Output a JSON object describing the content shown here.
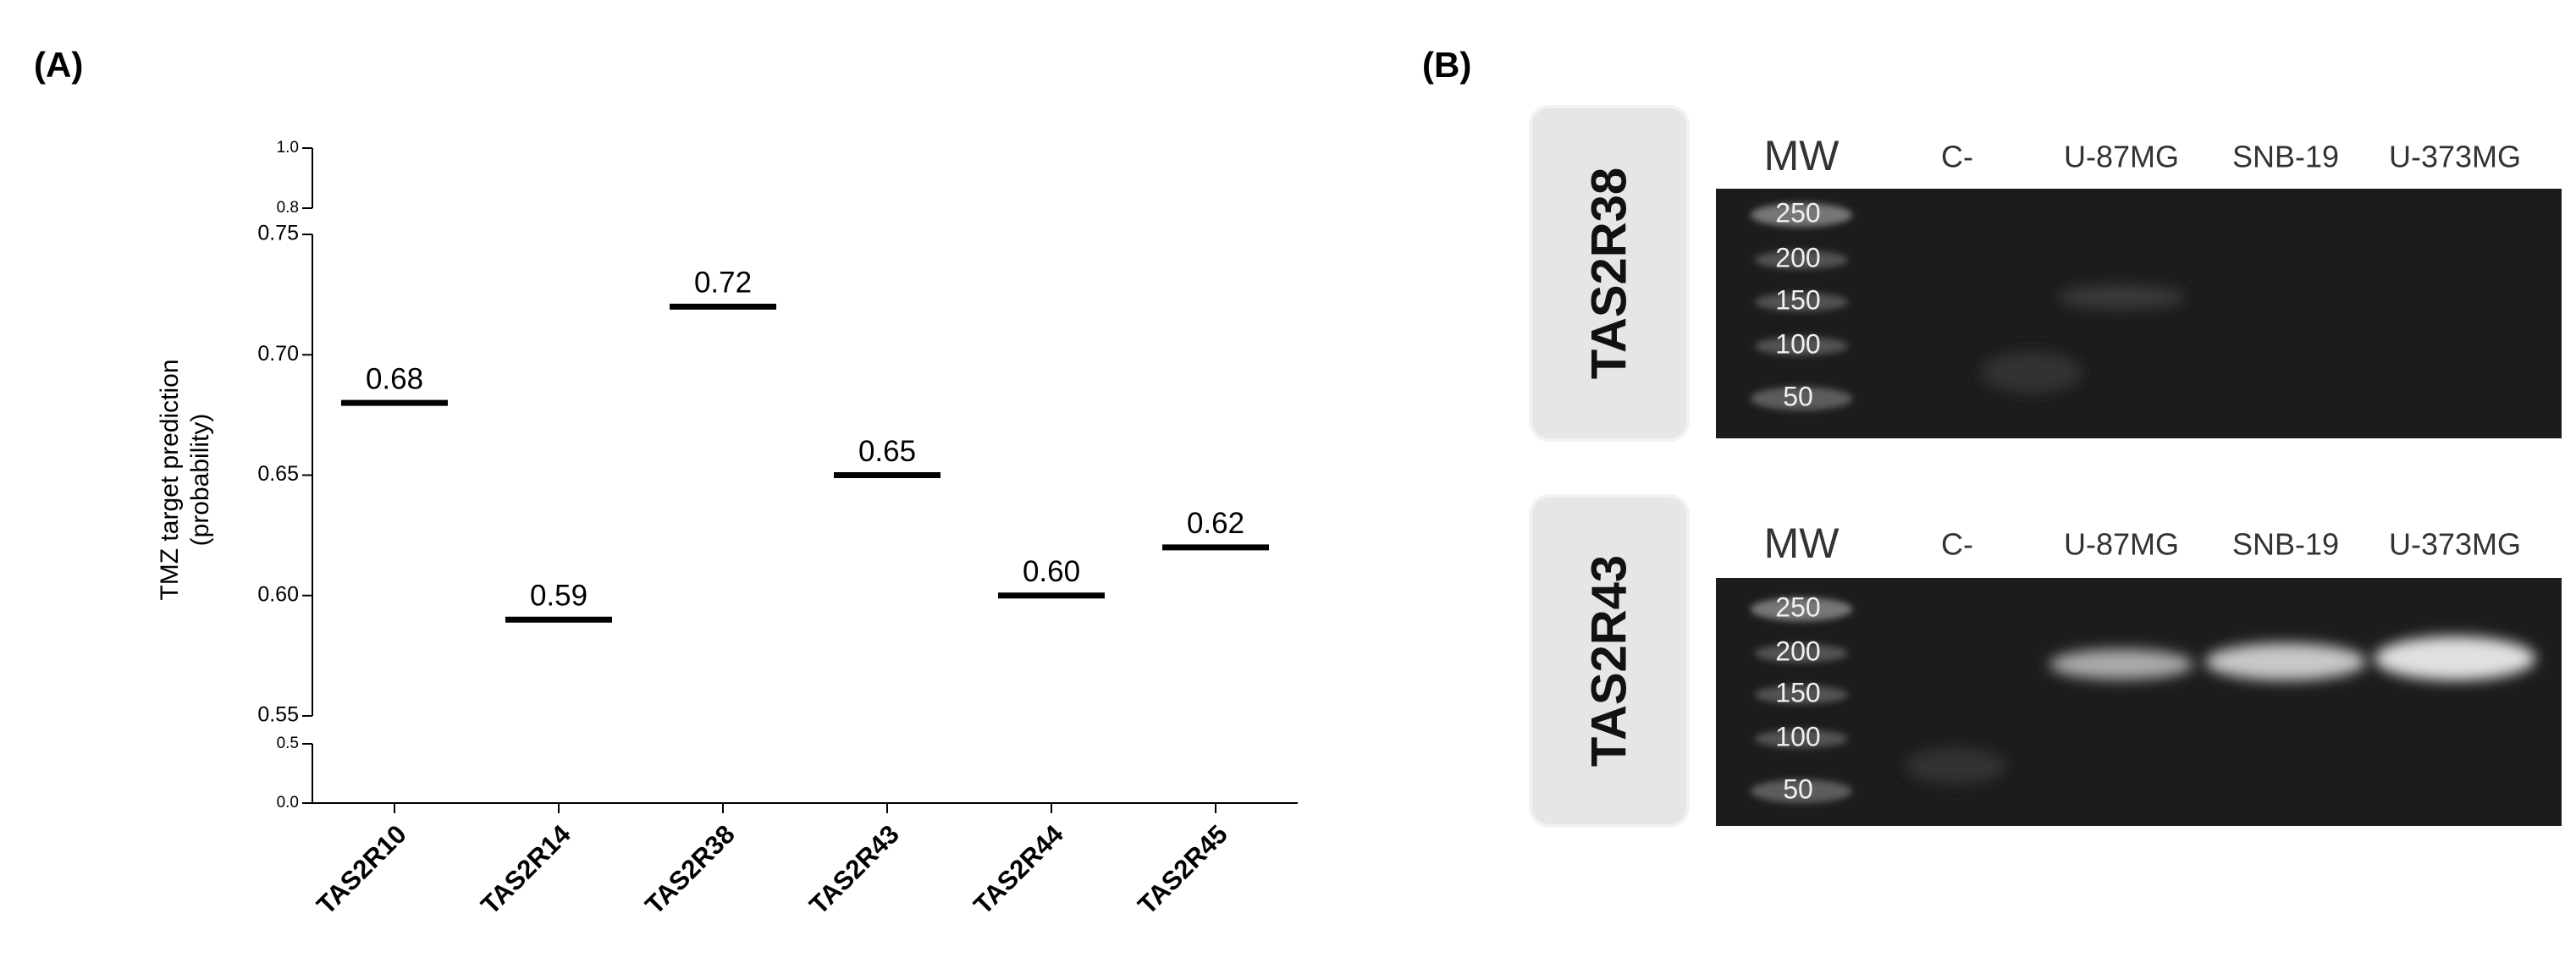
{
  "panels": [
    "(A)",
    "(B)"
  ],
  "chart_data": {
    "type": "strip",
    "ylabel": [
      "TMZ target prediction",
      "(probability)"
    ],
    "categories": [
      "TAS2R10",
      "TAS2R14",
      "TAS2R38",
      "TAS2R43",
      "TAS2R44",
      "TAS2R45"
    ],
    "values": [
      0.68,
      0.59,
      0.72,
      0.65,
      0.6,
      0.62
    ],
    "value_labels": [
      "0.68",
      "0.59",
      "0.72",
      "0.65",
      "0.60",
      "0.62"
    ],
    "color": "#000000",
    "y_segments": [
      {
        "ylim": [
          0,
          0.5
        ],
        "yticks": [
          {
            "value": 0,
            "label": "0.0"
          },
          0.5
        ]
      },
      {
        "ylim": [
          0.55,
          0.75
        ],
        "yticks": [
          0.55,
          {
            "value": 0.6,
            "label": "0.60"
          },
          0.65,
          {
            "value": 0.7,
            "label": "0.70"
          },
          0.75
        ]
      },
      {
        "ylim": [
          0.8,
          1.0
        ],
        "yticks": [
          0.8,
          {
            "value": 1.0,
            "label": "1.0"
          }
        ]
      }
    ]
  },
  "gels": [
    {
      "label": "TAS2R38",
      "lanes": [
        "MW",
        "C-",
        "U-87MG",
        "SNB-19",
        "U-373MG"
      ],
      "ladder": [
        "250",
        "200",
        "150",
        "100",
        "50"
      ]
    },
    {
      "label": "TAS2R43",
      "lanes": [
        "MW",
        "C-",
        "U-87MG",
        "SNB-19",
        "U-373MG"
      ],
      "ladder": [
        "250",
        "200",
        "150",
        "100",
        "50"
      ]
    }
  ]
}
